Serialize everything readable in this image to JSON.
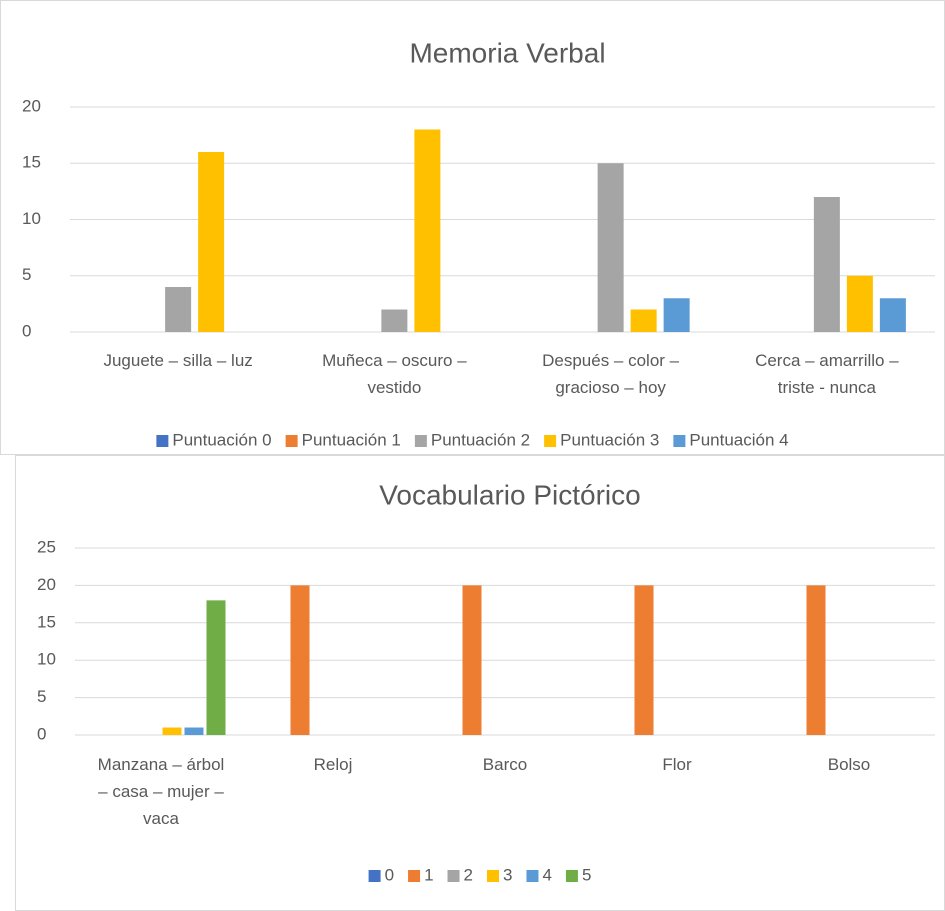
{
  "chart_data": [
    {
      "type": "bar",
      "title": "Memoria Verbal",
      "categories": [
        "Juguete – silla – luz",
        "Muñeca – oscuro – vestido",
        "Después – color – gracioso – hoy",
        "Cerca – amarrillo – triste - nunca"
      ],
      "series": [
        {
          "name": "Puntuación 0",
          "color": "#4472c4",
          "values": [
            0,
            0,
            0,
            0
          ]
        },
        {
          "name": "Puntuación 1",
          "color": "#ed7d31",
          "values": [
            0,
            0,
            0,
            0
          ]
        },
        {
          "name": "Puntuación 2",
          "color": "#a5a5a5",
          "values": [
            4,
            2,
            15,
            12
          ]
        },
        {
          "name": "Puntuación 3",
          "color": "#ffc000",
          "values": [
            16,
            18,
            2,
            5
          ]
        },
        {
          "name": "Puntuación 4",
          "color": "#5b9bd5",
          "values": [
            0,
            0,
            3,
            3
          ]
        }
      ],
      "ylim": [
        0,
        20
      ],
      "yticks": [
        0,
        5,
        10,
        15,
        20
      ],
      "grid": true,
      "legend": "bottom"
    },
    {
      "type": "bar",
      "title": "Vocabulario Pictórico",
      "categories": [
        "Manzana – árbol – casa – mujer – vaca",
        "Reloj",
        "Barco",
        "Flor",
        "Bolso"
      ],
      "series": [
        {
          "name": "0",
          "color": "#4472c4",
          "values": [
            0,
            0,
            0,
            0,
            0
          ]
        },
        {
          "name": "1",
          "color": "#ed7d31",
          "values": [
            0,
            20,
            20,
            20,
            20
          ]
        },
        {
          "name": "2",
          "color": "#a5a5a5",
          "values": [
            0,
            0,
            0,
            0,
            0
          ]
        },
        {
          "name": "3",
          "color": "#ffc000",
          "values": [
            1,
            0,
            0,
            0,
            0
          ]
        },
        {
          "name": "4",
          "color": "#5b9bd5",
          "values": [
            1,
            0,
            0,
            0,
            0
          ]
        },
        {
          "name": "5",
          "color": "#70ad47",
          "values": [
            18,
            0,
            0,
            0,
            0
          ]
        }
      ],
      "ylim": [
        0,
        25
      ],
      "yticks": [
        0,
        5,
        10,
        15,
        20,
        25
      ],
      "grid": true,
      "legend": "bottom"
    }
  ]
}
